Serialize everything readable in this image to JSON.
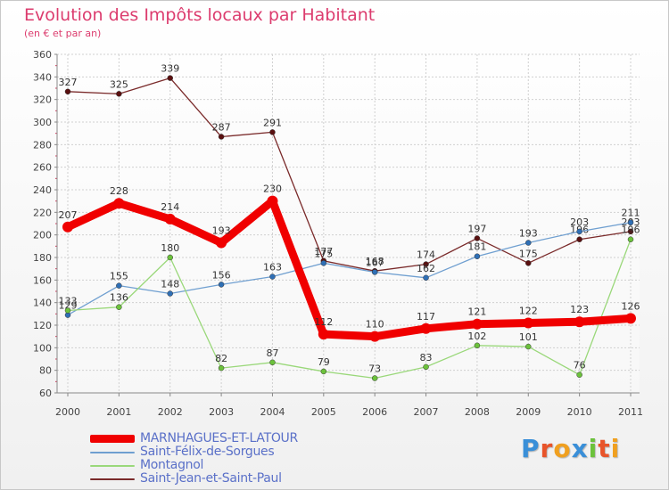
{
  "chart_data": {
    "type": "line",
    "title": "Evolution des Impôts locaux par Habitant",
    "subtitle": "(en € et par an)",
    "categories": [
      "2000",
      "2001",
      "2002",
      "2003",
      "2004",
      "2005",
      "2006",
      "2007",
      "2008",
      "2009",
      "2010",
      "2011"
    ],
    "yticks": [
      60,
      80,
      100,
      120,
      140,
      160,
      180,
      200,
      220,
      240,
      260,
      280,
      300,
      320,
      340,
      360
    ],
    "ylim": [
      60,
      360
    ],
    "xlabel": "",
    "ylabel": "",
    "grid": true,
    "legend_position": "bottom-left",
    "series": [
      {
        "name": "Saint-Jean-et-Saint-Paul",
        "color": "#7a2a2a",
        "marker": "#5a1010",
        "weight": "thin",
        "values": [
          327,
          325,
          339,
          287,
          291,
          177,
          168,
          174,
          197,
          175,
          196,
          203
        ],
        "labels": [
          "327",
          "325",
          "339",
          "287",
          "291",
          "177",
          "168",
          "174",
          "197",
          "175",
          "196",
          "203"
        ]
      },
      {
        "name": "Saint-Félix-de-Sorgues",
        "color": "#6f9fd0",
        "marker": "#2f6fb5",
        "weight": "thin",
        "values": [
          129,
          155,
          148,
          156,
          163,
          175,
          167,
          162,
          181,
          193,
          203,
          211
        ],
        "labels": [
          "129",
          "155",
          "148",
          "156",
          "163",
          "175",
          "167",
          "162",
          "181",
          "193",
          "203",
          "211"
        ]
      },
      {
        "name": "Montagnol",
        "color": "#9ad87a",
        "marker": "#6cc23c",
        "weight": "thin",
        "values": [
          133,
          136,
          180,
          82,
          87,
          79,
          73,
          83,
          102,
          101,
          76,
          196
        ],
        "labels": [
          "133",
          "136",
          "180",
          "82",
          "87",
          "79",
          "73",
          "83",
          "102",
          "101",
          "76",
          "196"
        ]
      },
      {
        "name": "MARNHAGUES-ET-LATOUR",
        "color": "#f00000",
        "marker": "#f00000",
        "weight": "thick",
        "values": [
          207,
          228,
          214,
          193,
          230,
          112,
          110,
          117,
          121,
          122,
          123,
          126
        ],
        "labels": [
          "207",
          "228",
          "214",
          "193",
          "230",
          "112",
          "110",
          "117",
          "121",
          "122",
          "123",
          "126"
        ]
      }
    ]
  },
  "legend": {
    "items": [
      {
        "label": "MARNHAGUES-ET-LATOUR",
        "color": "#f00000",
        "text_color": "#5a70c8",
        "thick": true
      },
      {
        "label": "Saint-Félix-de-Sorgues",
        "color": "#6f9fd0",
        "text_color": "#5a70c8",
        "thick": false
      },
      {
        "label": "Montagnol",
        "color": "#9ad87a",
        "text_color": "#5a70c8",
        "thick": false
      },
      {
        "label": "Saint-Jean-et-Saint-Paul",
        "color": "#7a2a2a",
        "text_color": "#5a70c8",
        "thick": false
      }
    ]
  },
  "logo": {
    "letters": [
      "P",
      "r",
      "o",
      "x",
      "i",
      "t",
      "i"
    ],
    "colors": [
      "#3a8fd8",
      "#e8542a",
      "#f0a020",
      "#3a8fd8",
      "#6cc23c",
      "#e8542a",
      "#f0a020"
    ]
  }
}
